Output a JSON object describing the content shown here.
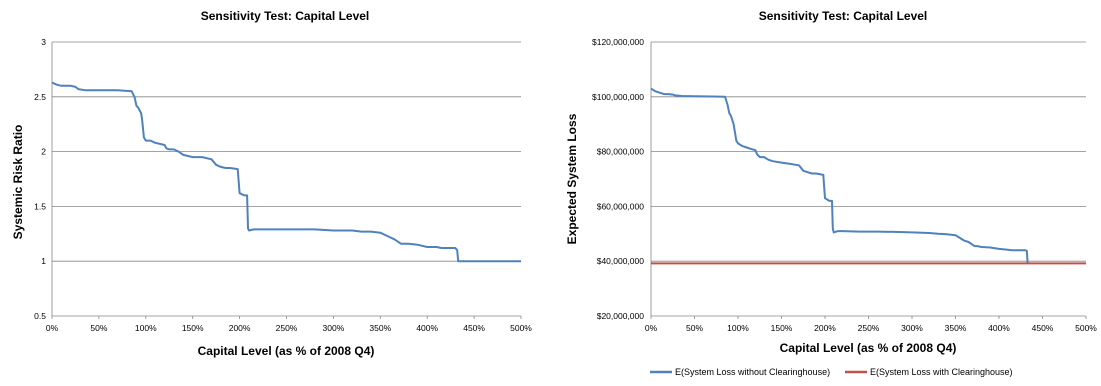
{
  "chart_data": [
    {
      "type": "line",
      "title": "Sensitivity Test: Capital Level",
      "xlabel": "Capital Level (as % of 2008 Q4)",
      "ylabel": "Systemic Risk Ratio",
      "x_tick_labels": [
        "0%",
        "50%",
        "100%",
        "150%",
        "200%",
        "250%",
        "300%",
        "350%",
        "400%",
        "450%",
        "500%"
      ],
      "y_tick_labels": [
        "0.5",
        "1",
        "1.5",
        "2",
        "2.5",
        "3"
      ],
      "xlim": [
        0,
        500
      ],
      "ylim": [
        0.5,
        3
      ],
      "grid": "horizontal",
      "series": [
        {
          "color": "#4F81BD",
          "x": [
            0,
            5,
            10,
            15,
            20,
            25,
            28,
            35,
            50,
            70,
            85,
            88,
            90,
            92,
            95,
            96,
            98,
            100,
            105,
            110,
            115,
            120,
            122,
            125,
            130,
            135,
            140,
            150,
            160,
            170,
            175,
            180,
            185,
            190,
            198,
            200,
            205,
            208,
            209,
            210,
            215,
            220,
            240,
            260,
            280,
            300,
            320,
            330,
            340,
            350,
            355,
            360,
            365,
            372,
            375,
            380,
            390,
            400,
            410,
            415,
            420,
            430,
            432,
            433,
            440,
            460,
            480,
            500
          ],
          "y": [
            2.63,
            2.61,
            2.6,
            2.6,
            2.6,
            2.59,
            2.57,
            2.56,
            2.56,
            2.56,
            2.55,
            2.5,
            2.42,
            2.4,
            2.35,
            2.3,
            2.13,
            2.1,
            2.1,
            2.08,
            2.07,
            2.06,
            2.03,
            2.02,
            2.02,
            2.0,
            1.97,
            1.95,
            1.95,
            1.93,
            1.88,
            1.86,
            1.85,
            1.85,
            1.84,
            1.62,
            1.6,
            1.6,
            1.3,
            1.28,
            1.29,
            1.29,
            1.29,
            1.29,
            1.29,
            1.28,
            1.28,
            1.27,
            1.27,
            1.26,
            1.24,
            1.22,
            1.2,
            1.16,
            1.16,
            1.16,
            1.15,
            1.13,
            1.13,
            1.12,
            1.12,
            1.12,
            1.1,
            1.0,
            1.0,
            1.0,
            1.0,
            1.0
          ]
        }
      ]
    },
    {
      "type": "line",
      "title": "Sensitivity Test: Capital Level",
      "xlabel": "Capital Level (as % of 2008 Q4)",
      "ylabel": "Expected System Loss",
      "x_tick_labels": [
        "0%",
        "50%",
        "100%",
        "150%",
        "200%",
        "250%",
        "300%",
        "350%",
        "400%",
        "450%",
        "500%"
      ],
      "y_tick_labels": [
        "$20,000,000",
        "$40,000,000",
        "$60,000,000",
        "$80,000,000",
        "$100,000,000",
        "$120,000,000"
      ],
      "xlim": [
        0,
        500
      ],
      "ylim": [
        20000000,
        120000000
      ],
      "grid": "horizontal",
      "legend_position": "bottom",
      "series": [
        {
          "name": "E(System Loss without Clearinghouse)",
          "color": "#4F81BD",
          "x": [
            0,
            5,
            10,
            15,
            20,
            25,
            28,
            35,
            50,
            70,
            85,
            88,
            90,
            92,
            95,
            96,
            98,
            100,
            105,
            110,
            115,
            120,
            122,
            125,
            130,
            135,
            140,
            150,
            160,
            170,
            175,
            180,
            185,
            190,
            198,
            200,
            205,
            208,
            209,
            210,
            215,
            220,
            240,
            260,
            280,
            300,
            320,
            330,
            340,
            350,
            355,
            360,
            365,
            372,
            375,
            380,
            390,
            400,
            410,
            415,
            420,
            430,
            432,
            433
          ],
          "y": [
            103000000,
            102000000,
            101500000,
            101000000,
            101000000,
            100800000,
            100500000,
            100300000,
            100200000,
            100100000,
            100000000,
            97000000,
            94000000,
            93000000,
            90000000,
            88000000,
            84000000,
            83000000,
            82000000,
            81500000,
            81000000,
            80500000,
            79000000,
            78000000,
            78000000,
            77000000,
            76500000,
            76000000,
            75500000,
            75000000,
            73000000,
            72500000,
            72000000,
            72000000,
            71500000,
            63000000,
            62000000,
            62000000,
            52000000,
            50500000,
            51000000,
            51000000,
            50800000,
            50800000,
            50700000,
            50500000,
            50300000,
            50000000,
            49800000,
            49500000,
            48500000,
            47500000,
            47000000,
            45500000,
            45500000,
            45200000,
            45000000,
            44500000,
            44200000,
            44000000,
            44000000,
            44000000,
            43800000,
            39000000
          ]
        },
        {
          "name": "E(System Loss with Clearinghouse)",
          "color": "#C0504D",
          "x": [
            0,
            500
          ],
          "y": [
            39200000,
            39200000
          ]
        }
      ]
    }
  ]
}
